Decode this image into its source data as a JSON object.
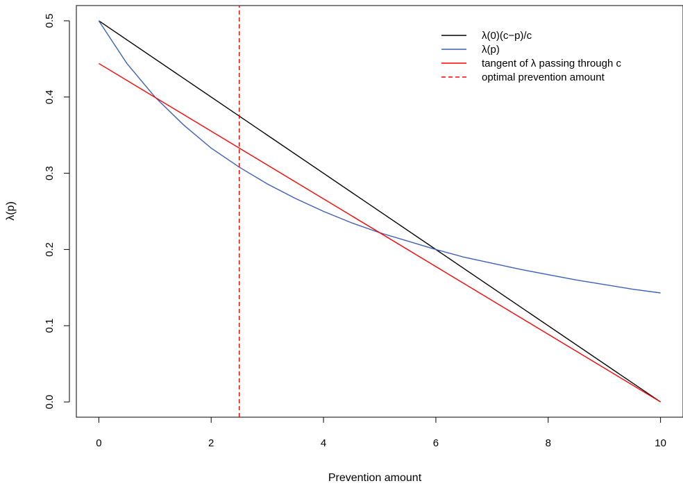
{
  "chart_data": {
    "type": "line",
    "title": "",
    "xlabel": "Prevention amount",
    "ylabel": "λ(p)",
    "xlim": [
      -0.4,
      10.4
    ],
    "ylim": [
      -0.02,
      0.52
    ],
    "x_ticks": [
      0,
      2,
      4,
      6,
      8,
      10
    ],
    "x_tick_labels": [
      "0",
      "2",
      "4",
      "6",
      "8",
      "10"
    ],
    "y_ticks": [
      0.0,
      0.1,
      0.2,
      0.3,
      0.4,
      0.5
    ],
    "y_tick_labels": [
      "0.0",
      "0.1",
      "0.2",
      "0.3",
      "0.4",
      "0.5"
    ],
    "grid": false,
    "legend_position": "top-right",
    "series": [
      {
        "name": "λ(0)(c−p)/c",
        "color": "#000000",
        "style": "solid",
        "x": [
          0,
          10
        ],
        "y": [
          0.5,
          0.0
        ]
      },
      {
        "name": "λ(p)",
        "color": "#3b5fb8",
        "style": "solid",
        "x": [
          0,
          0.5,
          1,
          1.5,
          2,
          2.5,
          3,
          3.5,
          4,
          4.5,
          5,
          5.5,
          6,
          6.5,
          7,
          7.5,
          8,
          8.5,
          9,
          9.5,
          10
        ],
        "y": [
          0.5,
          0.444,
          0.4,
          0.364,
          0.333,
          0.308,
          0.286,
          0.267,
          0.25,
          0.235,
          0.222,
          0.211,
          0.2,
          0.19,
          0.182,
          0.174,
          0.167,
          0.16,
          0.154,
          0.148,
          0.143
        ]
      },
      {
        "name": "tangent of λ passing through c",
        "color": "#ff0000",
        "style": "solid",
        "x": [
          0,
          10
        ],
        "y": [
          0.444,
          0.0
        ]
      },
      {
        "name": "optimal prevention amount",
        "color": "#ff0000",
        "style": "dashed",
        "orientation": "vertical",
        "x": [
          2.5,
          2.5
        ],
        "y": [
          -0.02,
          0.52
        ]
      }
    ]
  }
}
